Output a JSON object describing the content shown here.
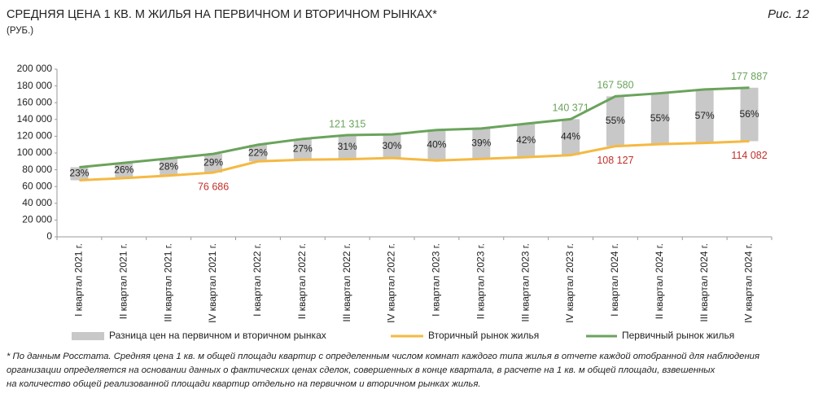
{
  "chart_data": {
    "type": "floating-bar-line",
    "title": "СРЕДНЯЯ ЦЕНА 1 КВ. М ЖИЛЬЯ НА ПЕРВИЧНОМ И ВТОРИЧНОМ РЫНКАХ*",
    "subtitle": "(РУБ.)",
    "figure_label": "Рис. 12",
    "categories": [
      "I квартал 2021 г.",
      "II квартал 2021 г.",
      "III квартал 2021 г.",
      "IV квартал 2021 г.",
      "I квартал 2022 г.",
      "II квартал 2022 г.",
      "III квартал 2022 г.",
      "IV квартал 2022 г.",
      "I квартал 2023 г.",
      "II квартал 2023 г.",
      "III квартал 2023 г.",
      "IV квартал 2023 г.",
      "I квартал 2024 г.",
      "II квартал 2024 г.",
      "III квартал 2024 г.",
      "IV квартал 2024 г."
    ],
    "series": [
      {
        "name": "Разница цен на первичном и вторичном рынках",
        "color": "#c8c8c8",
        "values": [
          23,
          26,
          28,
          29,
          22,
          27,
          31,
          30,
          40,
          39,
          42,
          44,
          55,
          55,
          57,
          56
        ],
        "value_labels": [
          "23%",
          "26%",
          "28%",
          "29%",
          "22%",
          "27%",
          "31%",
          "30%",
          "40%",
          "39%",
          "42%",
          "44%",
          "55%",
          "55%",
          "57%",
          "56%"
        ]
      },
      {
        "name": "Вторичный рынок жилья",
        "color": "#f5b942",
        "label_color": "#c0312b",
        "values": [
          67500,
          70000,
          73000,
          76686,
          90000,
          92000,
          92607,
          94000,
          91000,
          93000,
          95000,
          97480,
          108127,
          110500,
          112000,
          114082
        ],
        "value_labels": [
          null,
          null,
          null,
          "76 686",
          null,
          null,
          null,
          null,
          null,
          null,
          null,
          null,
          "108 127",
          null,
          null,
          "114 082"
        ]
      },
      {
        "name": "Первичный рынок жилья",
        "color": "#6aa35c",
        "label_color": "#6aa35c",
        "values": [
          83000,
          88200,
          93400,
          98925,
          109800,
          116800,
          121315,
          122200,
          127400,
          129300,
          134900,
          140371,
          167580,
          171300,
          175800,
          177887
        ],
        "value_labels": [
          null,
          null,
          null,
          null,
          null,
          null,
          "121 315",
          null,
          null,
          null,
          null,
          "140 371",
          "167 580",
          null,
          null,
          "177 887"
        ]
      }
    ],
    "ylim": [
      0,
      200000
    ],
    "yticks": [
      0,
      {
        "value": 20000,
        "label": "20 000"
      },
      {
        "value": 40000,
        "label": "40 000"
      },
      {
        "value": 60000,
        "label": "60 000"
      },
      {
        "value": 80000,
        "label": "80 000"
      },
      {
        "value": 100000,
        "label": "100 000"
      },
      {
        "value": 120000,
        "label": "120 000"
      },
      {
        "value": 140000,
        "label": "140 000"
      },
      {
        "value": 160000,
        "label": "160 000"
      },
      {
        "value": 180000,
        "label": "180 000"
      },
      {
        "value": 200000,
        "label": "200 000"
      }
    ],
    "footnote": [
      "* По данным Росстата. Средняя цена 1 кв. м общей площади квартир с определенным числом комнат каждого типа жилья в отчете каждой отобранной для наблюдения",
      "организации определяется на основании данных о фактических ценах сделок, совершенных в конце квартала, в расчете на 1 кв. м общей площади, взвешенных",
      "на количество общей реализованной площади квартир отдельно на первичном и вторичном рынках жилья."
    ]
  }
}
